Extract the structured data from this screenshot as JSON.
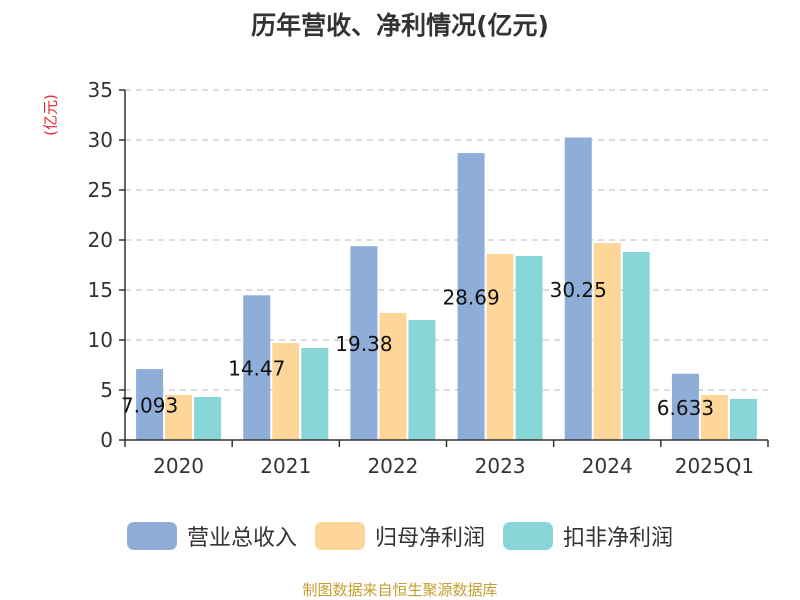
{
  "chart_data": {
    "type": "bar",
    "title": "历年营收、净利情况(亿元)",
    "y_unit_label": "(亿元)",
    "categories": [
      "2020",
      "2021",
      "2022",
      "2023",
      "2024",
      "2025Q1"
    ],
    "ylim": [
      0,
      35
    ],
    "yticks": [
      0,
      5,
      10,
      15,
      20,
      25,
      30,
      35
    ],
    "grid": true,
    "legend_position": "bottom",
    "series": [
      {
        "name": "营业总收入",
        "color": "#8eadd9",
        "values": [
          7.09,
          14.47,
          19.38,
          28.69,
          30.25,
          6.63
        ]
      },
      {
        "name": "归母净利润",
        "color": "#ffd699",
        "values": [
          4.5,
          9.7,
          12.7,
          18.6,
          19.7,
          4.5
        ]
      },
      {
        "name": "扣非净利润",
        "color": "#88d6d8",
        "values": [
          4.3,
          9.2,
          12.0,
          18.4,
          18.8,
          4.1
        ]
      }
    ],
    "data_labels": {
      "series_index": 0,
      "texts": [
        "7.093",
        "14.47",
        "19.38",
        "28.69",
        "30.25",
        "6.633"
      ]
    }
  },
  "footer": {
    "source": "制图数据来自恒生聚源数据库"
  }
}
